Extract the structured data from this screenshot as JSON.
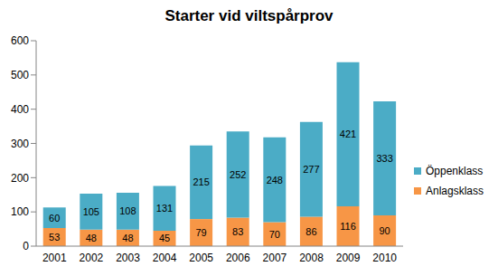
{
  "chart_data": {
    "type": "bar",
    "title": "Starter vid viltspårprov",
    "categories": [
      "2001",
      "2002",
      "2003",
      "2004",
      "2005",
      "2006",
      "2007",
      "2008",
      "2009",
      "2010"
    ],
    "series": [
      {
        "name": "Anlagsklass",
        "color": "#f79646",
        "values": [
          53,
          48,
          48,
          45,
          79,
          83,
          70,
          86,
          116,
          90
        ]
      },
      {
        "name": "Öppenklass",
        "color": "#4bacc6",
        "values": [
          60,
          105,
          108,
          131,
          215,
          252,
          248,
          277,
          421,
          333
        ]
      }
    ],
    "ylim": [
      0,
      600
    ],
    "yticks": [
      0,
      100,
      200,
      300,
      400,
      500,
      600
    ],
    "stacked": true,
    "data_labels": true,
    "grid": false,
    "legend": "right"
  }
}
